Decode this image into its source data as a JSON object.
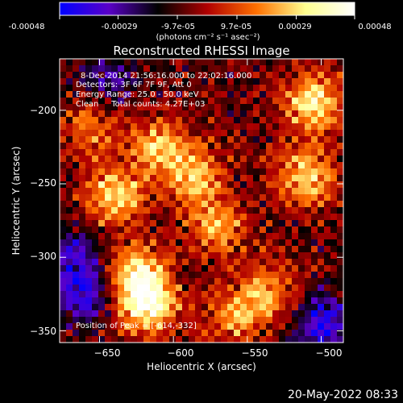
{
  "colorbar": {
    "tick_labels": [
      "-0.00048",
      "-0.00029",
      "-9.7e-05",
      "9.7e-05",
      "0.00029",
      "0.00048"
    ],
    "tick_values": [
      -0.00048,
      -0.00029,
      -9.7e-05,
      9.7e-05,
      0.00029,
      0.00048
    ],
    "range": [
      -0.00048,
      0.00048
    ],
    "unit_label": "(photons cm⁻² s⁻¹ asec⁻²)",
    "colors": [
      "#0000ff",
      "#5a00c8",
      "#000000",
      "#b00000",
      "#ff7000",
      "#ffff90",
      "#ffffff"
    ]
  },
  "chart_data": {
    "type": "heatmap",
    "title": "Reconstructed RHESSI Image",
    "xlabel": "Heliocentric X (arcsec)",
    "ylabel": "Heliocentric Y (arcsec)",
    "xlim": [
      -677,
      -485
    ],
    "ylim": [
      -358,
      -165
    ],
    "x_ticks": [
      -650,
      -600,
      -550,
      -500
    ],
    "y_ticks": [
      -350,
      -300,
      -250,
      -200
    ],
    "x_tick_labels": [
      "−650",
      "−600",
      "−550",
      "−500"
    ],
    "y_tick_labels": [
      "−350",
      "−300",
      "−250",
      "−200"
    ],
    "peak": {
      "x": -614,
      "y": -332
    },
    "hot_regions": [
      {
        "x": -618,
        "y": -332,
        "level": 1.0
      },
      {
        "x": -625,
        "y": -310,
        "level": 0.75
      },
      {
        "x": -640,
        "y": -258,
        "level": 0.8
      },
      {
        "x": -610,
        "y": -225,
        "level": 0.7
      },
      {
        "x": -585,
        "y": -245,
        "level": 0.65
      },
      {
        "x": -570,
        "y": -280,
        "level": 0.6
      },
      {
        "x": -505,
        "y": -195,
        "level": 0.85
      },
      {
        "x": -510,
        "y": -245,
        "level": 0.8
      },
      {
        "x": -535,
        "y": -325,
        "level": 0.6
      },
      {
        "x": -560,
        "y": -340,
        "level": 0.55
      },
      {
        "x": -655,
        "y": -210,
        "level": 0.5
      }
    ],
    "cold_regions": [
      {
        "x": -660,
        "y": -325,
        "level": 0.6
      },
      {
        "x": -670,
        "y": -300,
        "level": 0.5
      },
      {
        "x": -500,
        "y": -345,
        "level": 0.7
      },
      {
        "x": -645,
        "y": -180,
        "level": 0.45
      }
    ]
  },
  "annotations": {
    "time": "8-Dec-2014 21:56:16.000 to 22:02:16.000",
    "detectors": "Detectors: 3F 6F 7F 9F, Att 0",
    "energy": "Energy Range: 25.0 - 50.0 keV",
    "clean": "Clean     Total counts: 4.27E+03",
    "peak_position": "Position of Peak = [-614,-332]"
  },
  "footer": {
    "date": "20-May-2022 08:33"
  }
}
